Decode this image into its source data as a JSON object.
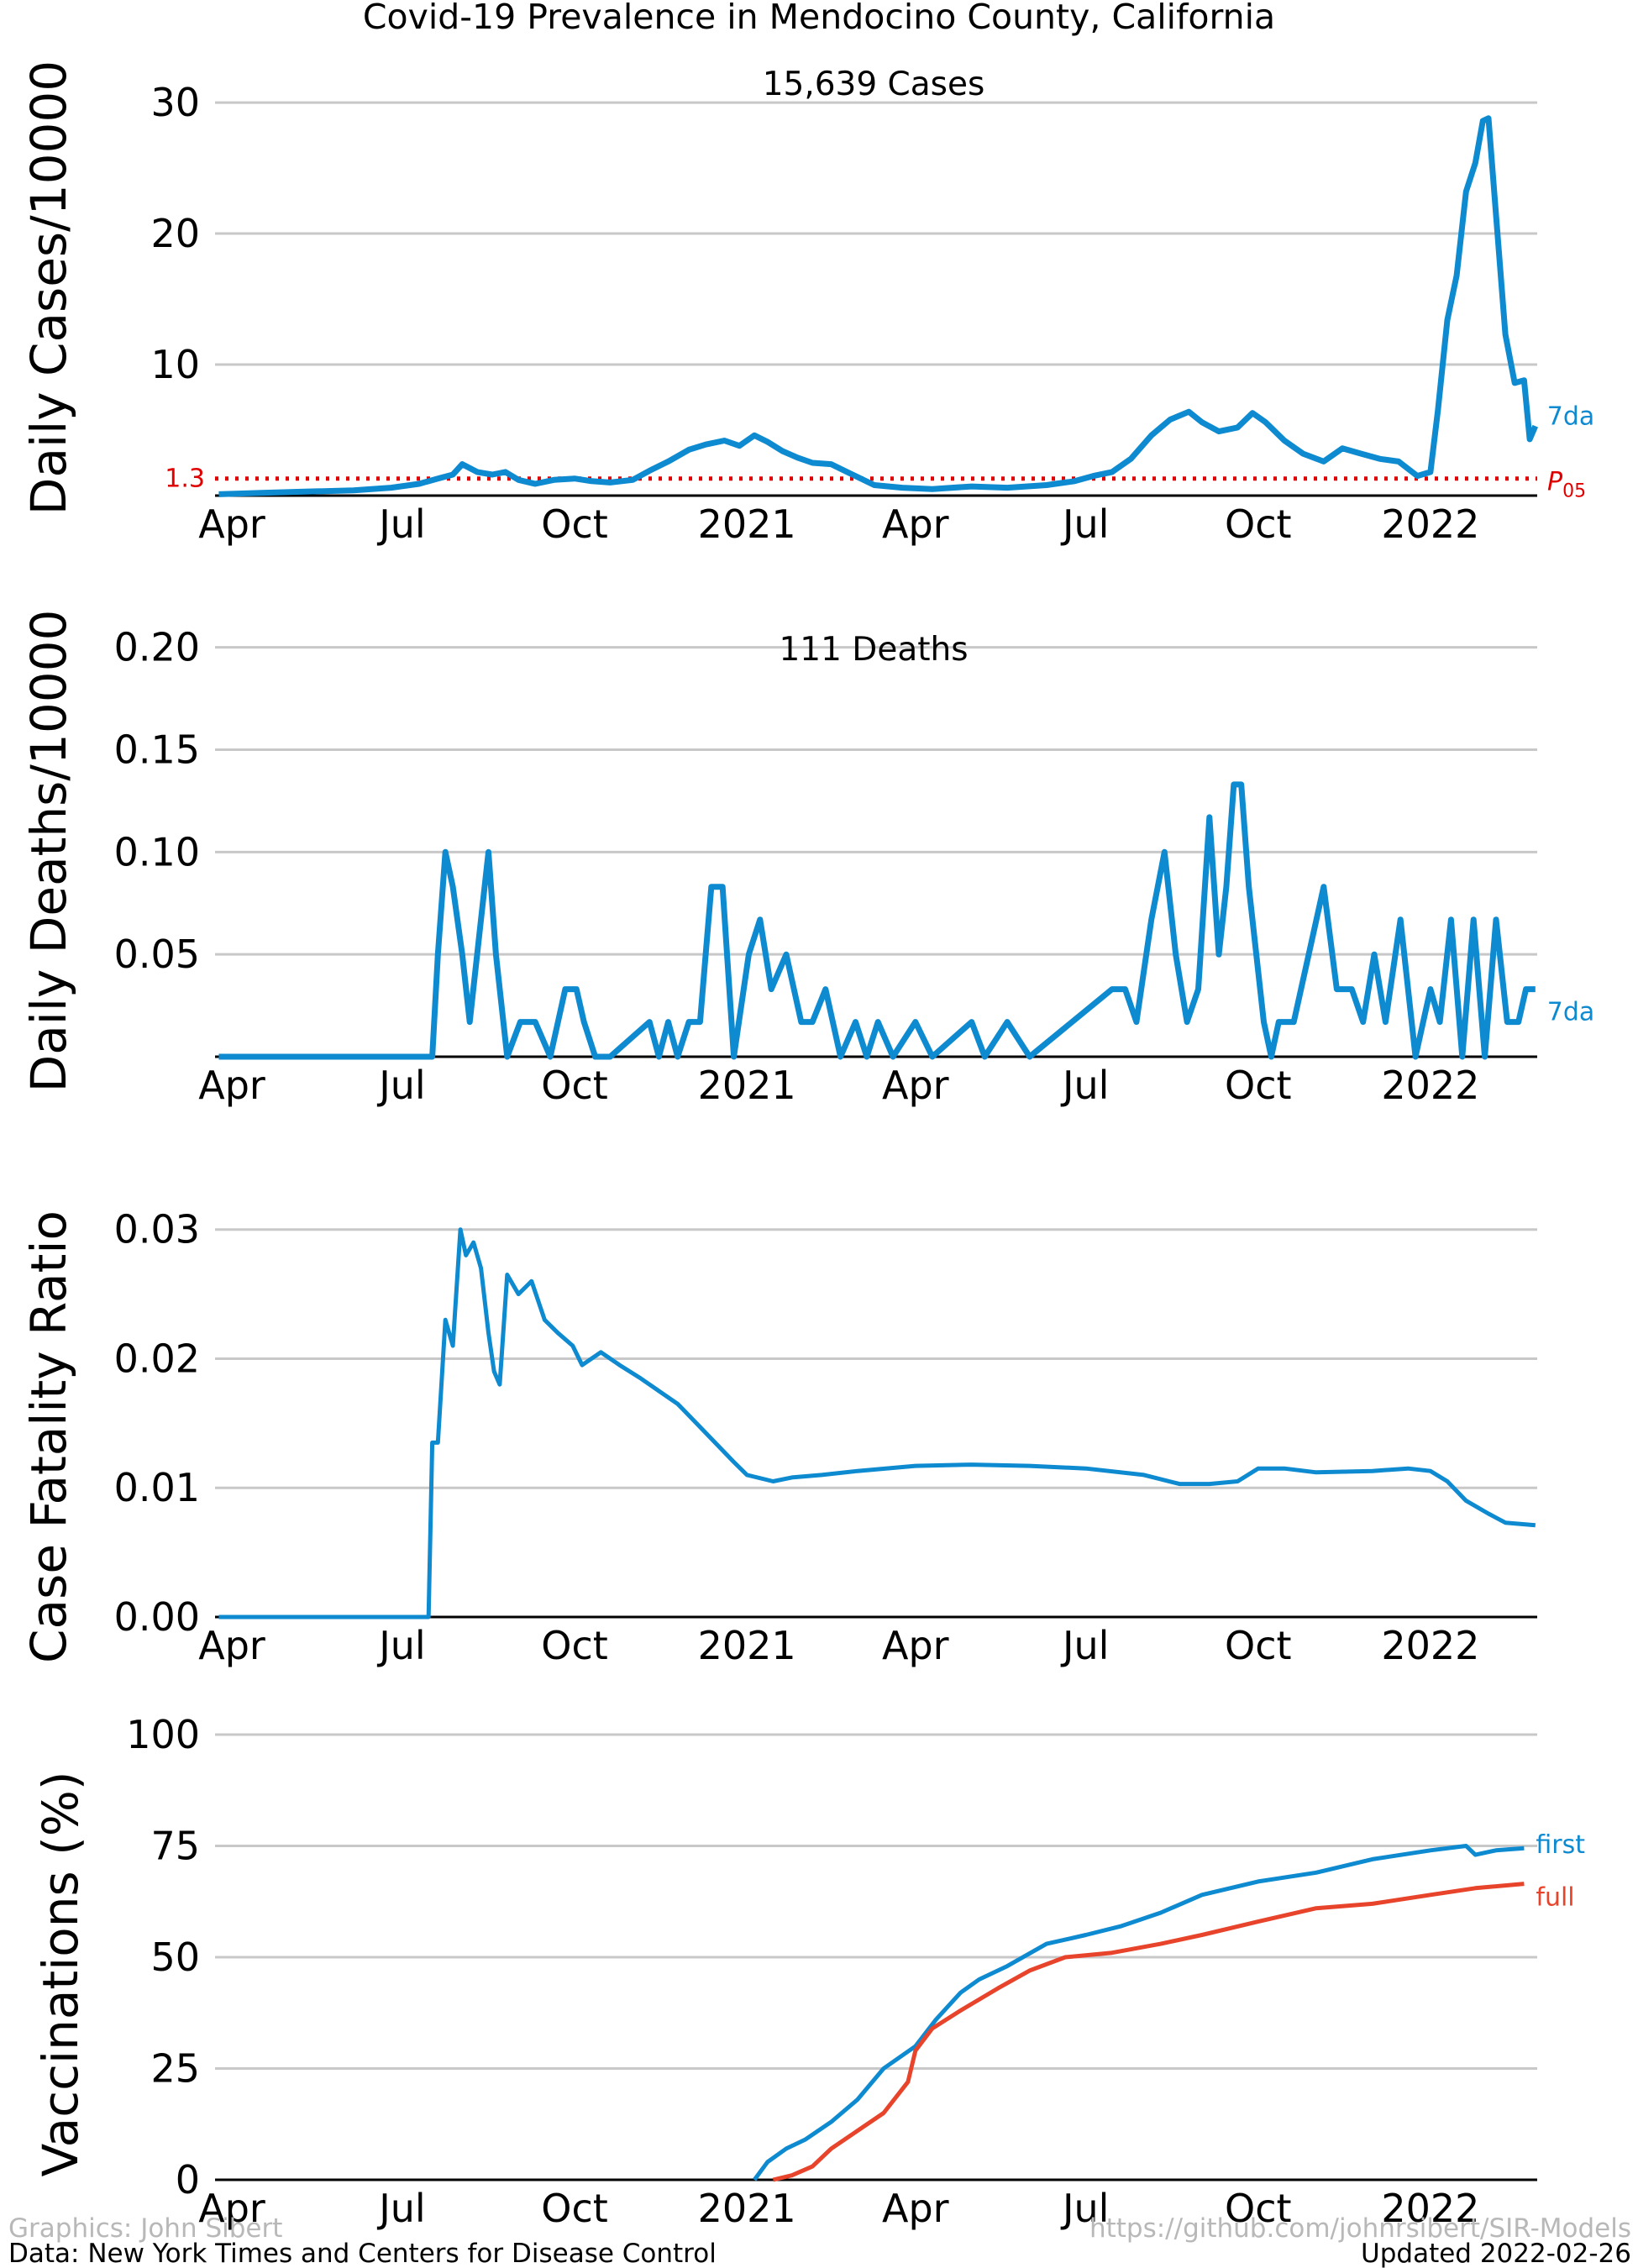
{
  "title": "Covid-19 Prevalence in Mendocino County, California",
  "colors": {
    "blue": "#0d8ad0",
    "red": "#e8432b",
    "ref_red": "#e00000",
    "grid": "#c8c8c8",
    "credit_gray": "#b8b8b8"
  },
  "footer": {
    "graphics": "Graphics: John Sibert",
    "data": "Data: New York Times and Centers for Disease Control",
    "url": "https://github.com/johnrsibert/SIR-Models",
    "updated": "Updated 2022-02-26"
  },
  "chart_data": [
    {
      "type": "line",
      "id": "cases",
      "ylabel": "Daily Cases/10000",
      "annotation": "15,639 Cases",
      "x_tick_labels": [
        "Apr",
        "Jul",
        "Oct",
        "2021",
        "Apr",
        "Jul",
        "Oct",
        "2022"
      ],
      "ylim": [
        0,
        34.3
      ],
      "y_ticks": [
        10,
        20,
        30
      ],
      "grid": true,
      "reference_line": {
        "value": 1.3,
        "label_left": "1.3",
        "label_right": "P",
        "label_right_sub": "05",
        "style": "dotted"
      },
      "series": [
        {
          "name": "7da",
          "line_style": "thick",
          "x": [
            "2020-03-25",
            "2020-04-15",
            "2020-05-10",
            "2020-06-05",
            "2020-06-25",
            "2020-07-10",
            "2020-07-20",
            "2020-07-28",
            "2020-08-02",
            "2020-08-10",
            "2020-08-18",
            "2020-08-25",
            "2020-09-01",
            "2020-09-10",
            "2020-09-20",
            "2020-10-01",
            "2020-10-10",
            "2020-10-20",
            "2020-11-01",
            "2020-11-10",
            "2020-11-20",
            "2020-12-01",
            "2020-12-10",
            "2020-12-20",
            "2020-12-28",
            "2021-01-05",
            "2021-01-12",
            "2021-01-20",
            "2021-01-28",
            "2021-02-05",
            "2021-02-15",
            "2021-02-25",
            "2021-03-10",
            "2021-03-25",
            "2021-04-10",
            "2021-05-01",
            "2021-05-20",
            "2021-06-10",
            "2021-06-25",
            "2021-07-05",
            "2021-07-15",
            "2021-07-25",
            "2021-08-05",
            "2021-08-15",
            "2021-08-25",
            "2021-09-01",
            "2021-09-10",
            "2021-09-20",
            "2021-09-28",
            "2021-10-05",
            "2021-10-15",
            "2021-10-25",
            "2021-11-05",
            "2021-11-15",
            "2021-11-25",
            "2021-12-05",
            "2021-12-15",
            "2021-12-25",
            "2022-01-01",
            "2022-01-05",
            "2022-01-10",
            "2022-01-15",
            "2022-01-20",
            "2022-01-25",
            "2022-01-29",
            "2022-02-01",
            "2022-02-05",
            "2022-02-10",
            "2022-02-15",
            "2022-02-20",
            "2022-02-23",
            "2022-02-26"
          ],
          "values": [
            0.1,
            0.2,
            0.3,
            0.4,
            0.6,
            0.9,
            1.3,
            1.6,
            2.4,
            1.8,
            1.6,
            1.8,
            1.2,
            0.9,
            1.2,
            1.3,
            1.1,
            1.0,
            1.2,
            1.9,
            2.6,
            3.5,
            3.9,
            4.2,
            3.8,
            4.6,
            4.1,
            3.4,
            2.9,
            2.5,
            2.4,
            1.7,
            0.8,
            0.6,
            0.5,
            0.7,
            0.6,
            0.8,
            1.1,
            1.5,
            1.8,
            2.8,
            4.6,
            5.8,
            6.4,
            5.6,
            4.9,
            5.2,
            6.3,
            5.6,
            4.2,
            3.2,
            2.6,
            3.6,
            3.2,
            2.8,
            2.6,
            1.5,
            1.8,
            6.5,
            13.4,
            16.8,
            23.2,
            25.4,
            28.6,
            28.8,
            21.4,
            12.3,
            8.6,
            8.8,
            4.3,
            5.3
          ]
        }
      ]
    },
    {
      "type": "line",
      "id": "deaths",
      "ylabel": "Daily Deaths/10000",
      "annotation": "111 Deaths",
      "x_tick_labels": [
        "Apr",
        "Jul",
        "Oct",
        "2021",
        "Apr",
        "Jul",
        "Oct",
        "2022"
      ],
      "ylim": [
        0,
        0.2175
      ],
      "y_ticks": [
        0.05,
        0.1,
        0.15,
        0.2
      ],
      "y_tick_labels": [
        "0.05",
        "0.10",
        "0.15",
        "0.20"
      ],
      "grid": true,
      "series": [
        {
          "name": "7da",
          "line_style": "thick",
          "x": [
            "2020-03-25",
            "2020-07-17",
            "2020-07-20",
            "2020-07-24",
            "2020-07-28",
            "2020-08-02",
            "2020-08-06",
            "2020-08-12",
            "2020-08-16",
            "2020-08-20",
            "2020-08-26",
            "2020-09-02",
            "2020-09-10",
            "2020-09-18",
            "2020-09-26",
            "2020-10-02",
            "2020-10-06",
            "2020-10-12",
            "2020-10-20",
            "2020-11-10",
            "2020-11-15",
            "2020-11-20",
            "2020-11-25",
            "2020-12-01",
            "2020-12-07",
            "2020-12-13",
            "2020-12-19",
            "2020-12-25",
            "2021-01-02",
            "2021-01-08",
            "2021-01-14",
            "2021-01-22",
            "2021-01-30",
            "2021-02-05",
            "2021-02-12",
            "2021-02-20",
            "2021-02-28",
            "2021-03-06",
            "2021-03-12",
            "2021-03-20",
            "2021-04-01",
            "2021-04-10",
            "2021-05-01",
            "2021-05-08",
            "2021-05-20",
            "2021-06-01",
            "2021-07-15",
            "2021-07-22",
            "2021-07-28",
            "2021-08-05",
            "2021-08-12",
            "2021-08-18",
            "2021-08-24",
            "2021-08-30",
            "2021-09-05",
            "2021-09-10",
            "2021-09-14",
            "2021-09-18",
            "2021-09-22",
            "2021-09-26",
            "2021-09-30",
            "2021-10-04",
            "2021-10-08",
            "2021-10-12",
            "2021-10-20",
            "2021-10-28",
            "2021-11-05",
            "2021-11-12",
            "2021-11-20",
            "2021-11-26",
            "2021-12-02",
            "2021-12-08",
            "2021-12-16",
            "2021-12-24",
            "2022-01-01",
            "2022-01-06",
            "2022-01-12",
            "2022-01-18",
            "2022-01-24",
            "2022-01-30",
            "2022-02-05",
            "2022-02-11",
            "2022-02-17",
            "2022-02-21",
            "2022-02-26"
          ],
          "values": [
            0,
            0,
            0.05,
            0.1,
            0.083,
            0.05,
            0.017,
            0.067,
            0.1,
            0.05,
            0,
            0.017,
            0.017,
            0,
            0.033,
            0.033,
            0.017,
            0,
            0,
            0.017,
            0,
            0.017,
            0,
            0.017,
            0.017,
            0.083,
            0.083,
            0,
            0.05,
            0.067,
            0.033,
            0.05,
            0.017,
            0.017,
            0.033,
            0,
            0.017,
            0,
            0.017,
            0,
            0.017,
            0,
            0.017,
            0,
            0.017,
            0,
            0.033,
            0.033,
            0.017,
            0.067,
            0.1,
            0.05,
            0.017,
            0.033,
            0.117,
            0.05,
            0.083,
            0.133,
            0.133,
            0.083,
            0.05,
            0.017,
            0,
            0.017,
            0.017,
            0.05,
            0.083,
            0.033,
            0.033,
            0.017,
            0.05,
            0.017,
            0.067,
            0,
            0.033,
            0.017,
            0.067,
            0,
            0.067,
            0,
            0.067,
            0.017,
            0.017,
            0.033,
            0.033
          ]
        }
      ]
    },
    {
      "type": "line",
      "id": "cfr",
      "ylabel": "Case Fatality Ratio",
      "x_tick_labels": [
        "Apr",
        "Jul",
        "Oct",
        "2021",
        "Apr",
        "Jul",
        "Oct",
        "2022"
      ],
      "ylim": [
        0,
        0.0305
      ],
      "y_ticks": [
        0.0,
        0.01,
        0.02,
        0.03
      ],
      "y_tick_labels": [
        "0.00",
        "0.01",
        "0.02",
        "0.03"
      ],
      "grid": true,
      "series": [
        {
          "line_style": "medium",
          "x": [
            "2020-03-25",
            "2020-07-15",
            "2020-07-17",
            "2020-07-20",
            "2020-07-24",
            "2020-07-28",
            "2020-08-01",
            "2020-08-04",
            "2020-08-08",
            "2020-08-12",
            "2020-08-16",
            "2020-08-19",
            "2020-08-22",
            "2020-08-26",
            "2020-09-01",
            "2020-09-08",
            "2020-09-15",
            "2020-09-22",
            "2020-09-30",
            "2020-10-05",
            "2020-10-15",
            "2020-10-25",
            "2020-11-05",
            "2020-11-15",
            "2020-11-25",
            "2020-12-05",
            "2020-12-15",
            "2020-12-25",
            "2021-01-01",
            "2021-01-15",
            "2021-01-25",
            "2021-02-10",
            "2021-03-01",
            "2021-04-01",
            "2021-05-01",
            "2021-06-01",
            "2021-07-01",
            "2021-08-01",
            "2021-08-20",
            "2021-09-05",
            "2021-09-20",
            "2021-10-01",
            "2021-10-15",
            "2021-11-01",
            "2021-12-01",
            "2021-12-20",
            "2022-01-01",
            "2022-01-10",
            "2022-01-20",
            "2022-02-01",
            "2022-02-10",
            "2022-02-26"
          ],
          "values": [
            0,
            0,
            0.0135,
            0.0135,
            0.023,
            0.021,
            0.03,
            0.028,
            0.029,
            0.027,
            0.022,
            0.019,
            0.018,
            0.0265,
            0.025,
            0.026,
            0.023,
            0.022,
            0.021,
            0.0195,
            0.0205,
            0.0195,
            0.0185,
            0.0175,
            0.0165,
            0.015,
            0.0135,
            0.012,
            0.011,
            0.0105,
            0.0108,
            0.011,
            0.0113,
            0.0117,
            0.0118,
            0.0117,
            0.0115,
            0.011,
            0.0103,
            0.0103,
            0.0105,
            0.0115,
            0.0115,
            0.0112,
            0.0113,
            0.0115,
            0.0113,
            0.0105,
            0.009,
            0.008,
            0.0073,
            0.0071
          ]
        }
      ]
    },
    {
      "type": "line",
      "id": "vaccinations",
      "ylabel": "Vaccinations (%)",
      "x_tick_labels": [
        "Apr",
        "Jul",
        "Oct",
        "2021",
        "Apr",
        "Jul",
        "Oct",
        "2022"
      ],
      "ylim": [
        0,
        100
      ],
      "y_ticks": [
        0,
        25,
        50,
        75,
        100
      ],
      "grid": true,
      "series": [
        {
          "name": "first",
          "color_key": "blue",
          "x": [
            "2021-01-05",
            "2021-01-12",
            "2021-01-22",
            "2021-02-01",
            "2021-02-15",
            "2021-03-01",
            "2021-03-15",
            "2021-04-01",
            "2021-04-12",
            "2021-04-25",
            "2021-05-05",
            "2021-05-20",
            "2021-06-10",
            "2021-07-01",
            "2021-07-20",
            "2021-08-10",
            "2021-09-01",
            "2021-10-01",
            "2021-11-01",
            "2021-12-01",
            "2022-01-01",
            "2022-01-20",
            "2022-01-25",
            "2022-02-05",
            "2022-02-20"
          ],
          "values": [
            0,
            4,
            7,
            9,
            13,
            18,
            25,
            30,
            36,
            42,
            45,
            48,
            53,
            55,
            57,
            60,
            64,
            67,
            69,
            72,
            74,
            75,
            73,
            74,
            74.5
          ]
        },
        {
          "name": "full",
          "color_key": "red",
          "x": [
            "2021-01-15",
            "2021-01-25",
            "2021-02-05",
            "2021-02-15",
            "2021-03-01",
            "2021-03-15",
            "2021-03-28",
            "2021-04-01",
            "2021-04-10",
            "2021-04-25",
            "2021-05-15",
            "2021-06-01",
            "2021-06-20",
            "2021-07-15",
            "2021-08-10",
            "2021-09-01",
            "2021-10-01",
            "2021-11-01",
            "2021-12-01",
            "2022-01-01",
            "2022-01-25",
            "2022-02-20"
          ],
          "values": [
            0,
            1,
            3,
            7,
            11,
            15,
            22,
            29,
            34,
            38,
            43,
            47,
            50,
            51,
            53,
            55,
            58,
            61,
            62,
            64,
            65.5,
            66.5
          ]
        }
      ]
    }
  ]
}
